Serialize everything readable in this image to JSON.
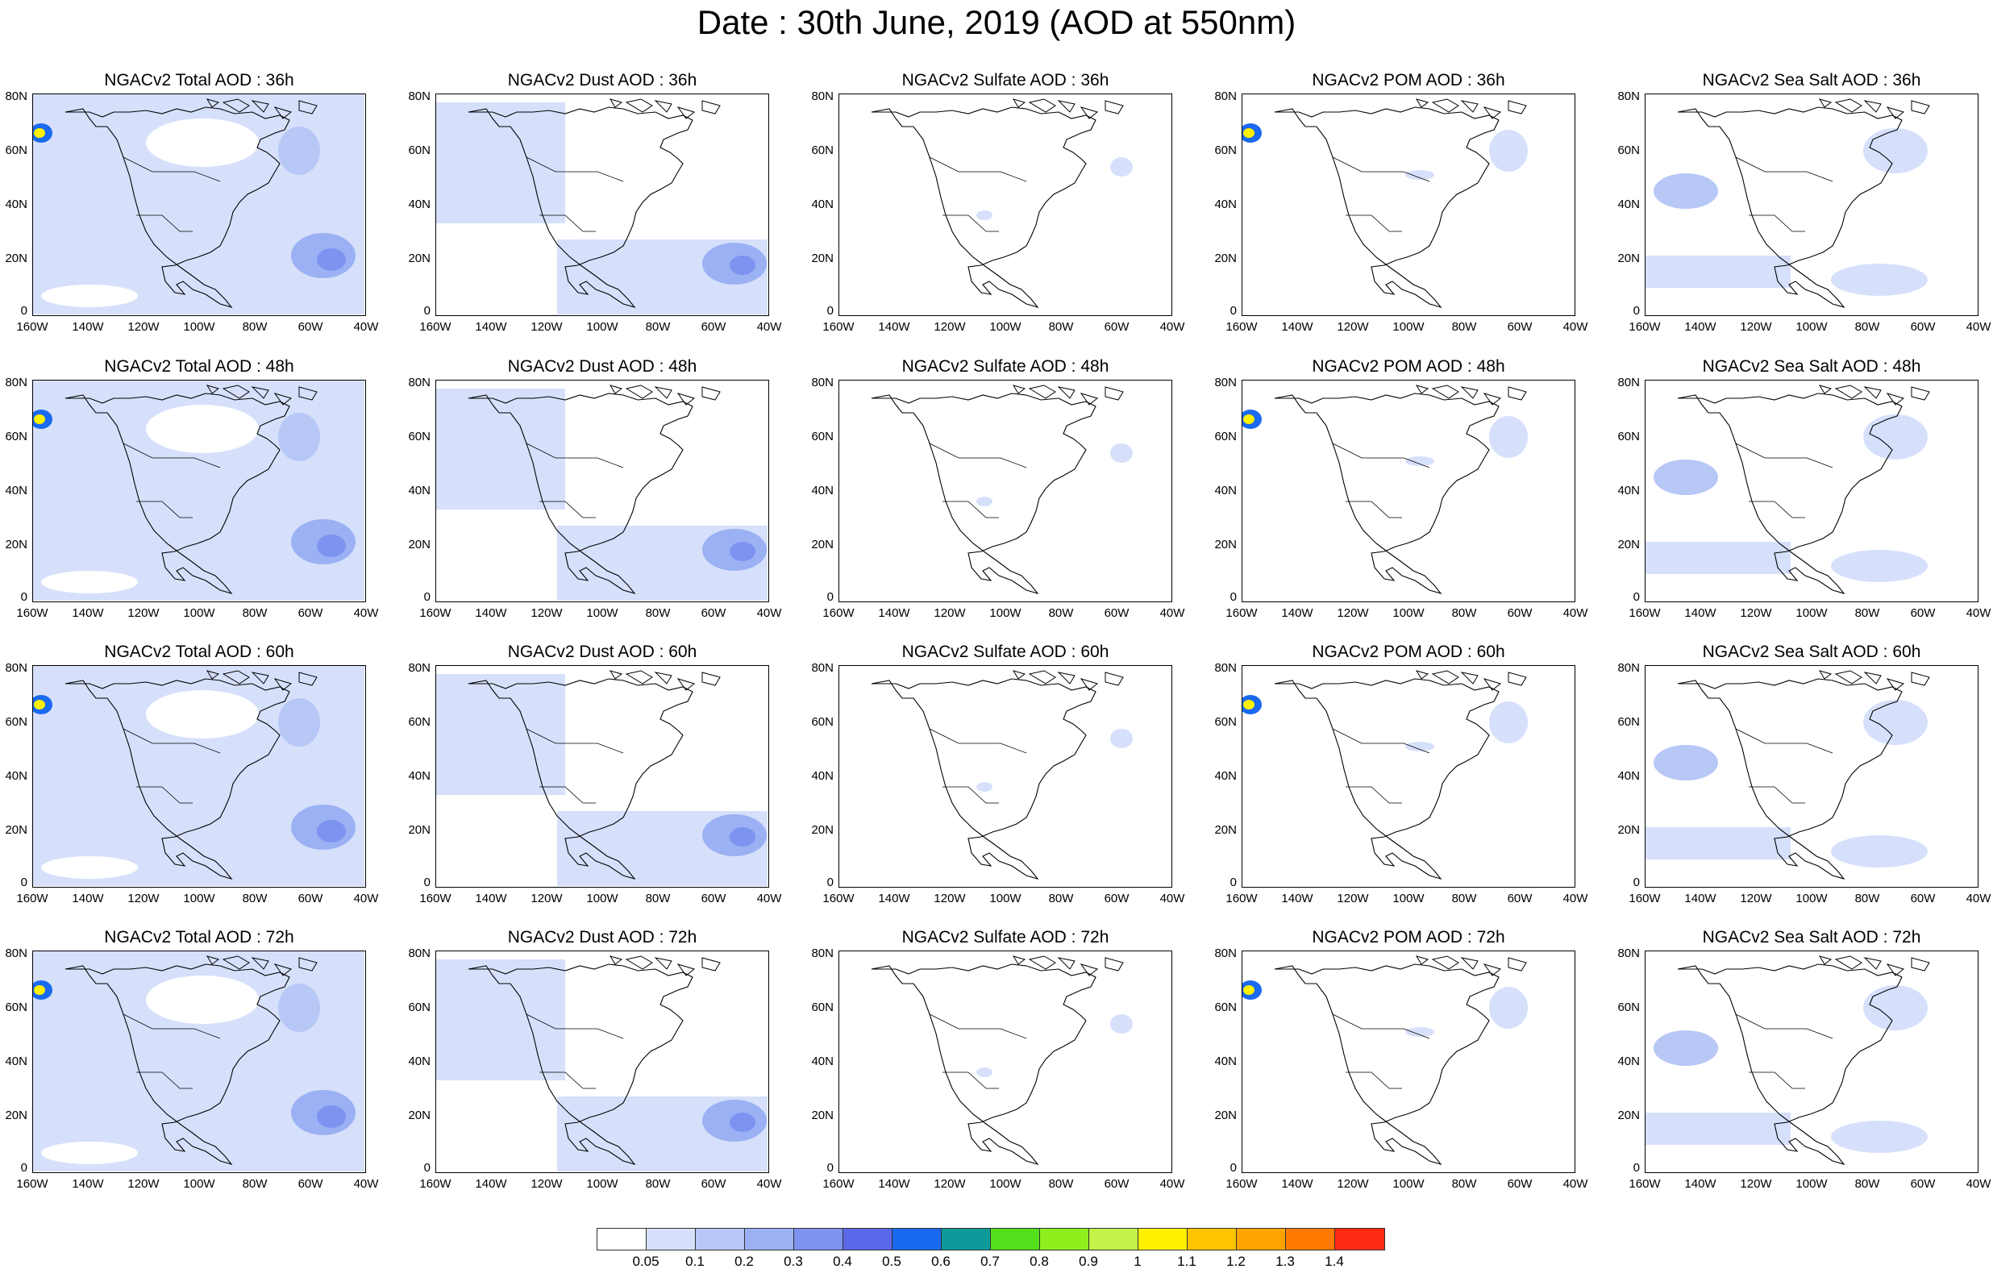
{
  "title": "Date : 30th June, 2019 (AOD at 550nm)",
  "panel_titles": [
    [
      "NGACv2 Total AOD : 36h",
      "NGACv2 Dust AOD : 36h",
      "NGACv2 Sulfate AOD : 36h",
      "NGACv2 POM AOD : 36h",
      "NGACv2 Sea Salt AOD : 36h"
    ],
    [
      "NGACv2 Total AOD : 48h",
      "NGACv2 Dust AOD : 48h",
      "NGACv2 Sulfate AOD : 48h",
      "NGACv2 POM AOD : 48h",
      "NGACv2 Sea Salt AOD : 48h"
    ],
    [
      "NGACv2 Total AOD : 60h",
      "NGACv2 Dust AOD : 60h",
      "NGACv2 Sulfate AOD : 60h",
      "NGACv2 POM AOD : 60h",
      "NGACv2 Sea Salt AOD : 60h"
    ],
    [
      "NGACv2 Total AOD : 72h",
      "NGACv2 Dust AOD : 72h",
      "NGACv2 Sulfate AOD : 72h",
      "NGACv2 POM AOD : 72h",
      "NGACv2 Sea Salt  AOD : 72h"
    ]
  ],
  "lat_labels": [
    "80N",
    "60N",
    "40N",
    "20N",
    "0"
  ],
  "lon_labels": [
    "160W",
    "140W",
    "120W",
    "100W",
    "80W",
    "60W",
    "40W"
  ],
  "colorbar": {
    "labels": [
      "0.05",
      "0.1",
      "0.2",
      "0.3",
      "0.4",
      "0.5",
      "0.6",
      "0.7",
      "0.8",
      "0.9",
      "1",
      "1.1",
      "1.2",
      "1.3",
      "1.4"
    ],
    "colors": [
      "#ffffff",
      "#d6e0fb",
      "#b7c7f6",
      "#9bb1f4",
      "#7d93f0",
      "#5c68ea",
      "#1a6af0",
      "#0e9a9a",
      "#54e01c",
      "#8fef1c",
      "#c4f24a",
      "#fff200",
      "#ffc400",
      "#ffa400",
      "#ff7a00",
      "#ff2a12"
    ]
  }
}
